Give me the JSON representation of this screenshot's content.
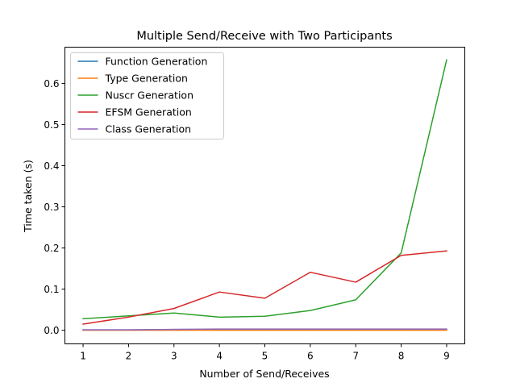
{
  "chart_data": {
    "type": "line",
    "title": "Multiple Send/Receive with Two Participants",
    "xlabel": "Number of Send/Receives",
    "ylabel": "Time taken (s)",
    "x": [
      1,
      2,
      3,
      4,
      5,
      6,
      7,
      8,
      9
    ],
    "xticks": [
      "1",
      "2",
      "3",
      "4",
      "5",
      "6",
      "7",
      "8",
      "9"
    ],
    "yticks": [
      "0.0",
      "0.1",
      "0.2",
      "0.3",
      "0.4",
      "0.5",
      "0.6"
    ],
    "xlim": [
      0.6,
      9.4
    ],
    "ylim": [
      -0.033,
      0.688
    ],
    "grid": false,
    "legend_position": "top-left",
    "series": [
      {
        "name": "Function Generation",
        "color": "#1f77b4",
        "values": [
          0.001,
          0.001,
          0.002,
          0.002,
          0.002,
          0.002,
          0.002,
          0.002,
          0.002
        ]
      },
      {
        "name": "Type Generation",
        "color": "#ff7f0e",
        "values": [
          0.0,
          0.0,
          0.0,
          0.0,
          0.0,
          0.0,
          0.0,
          0.0,
          0.0
        ]
      },
      {
        "name": "Nuscr Generation",
        "color": "#2ca02c",
        "values": [
          0.028,
          0.035,
          0.042,
          0.032,
          0.034,
          0.048,
          0.074,
          0.188,
          0.657
        ]
      },
      {
        "name": "EFSM Generation",
        "color": "#d62728",
        "values": [
          0.015,
          0.032,
          0.053,
          0.093,
          0.078,
          0.141,
          0.117,
          0.182,
          0.193
        ]
      },
      {
        "name": "Class Generation",
        "color": "#9467bd",
        "values": [
          0.001,
          0.001,
          0.002,
          0.003,
          0.003,
          0.003,
          0.003,
          0.003,
          0.003
        ]
      }
    ]
  }
}
